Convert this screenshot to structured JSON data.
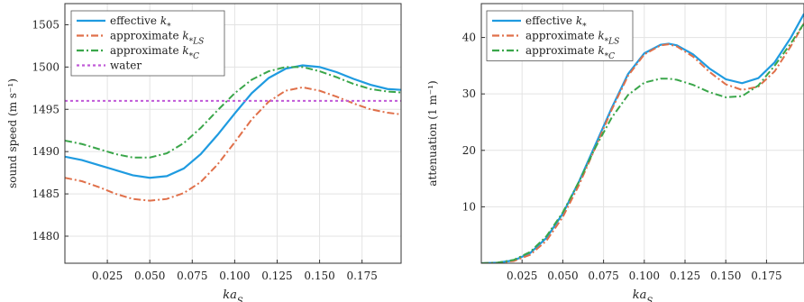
{
  "chart_data": [
    {
      "type": "line",
      "xlabel": "ka_S",
      "ylabel": "sound speed (m s⁻¹)",
      "xlim": [
        0.0,
        0.198
      ],
      "ylim": [
        1476.8,
        1507.5
      ],
      "xticks": [
        0.025,
        0.05,
        0.075,
        0.1,
        0.125,
        0.15,
        0.175
      ],
      "xtick_labels": [
        "0.025",
        "0.050",
        "0.075",
        "0.100",
        "0.125",
        "0.150",
        "0.175"
      ],
      "yticks": [
        1480,
        1485,
        1490,
        1495,
        1500,
        1505
      ],
      "ytick_labels": [
        "1480",
        "1485",
        "1490",
        "1495",
        "1500",
        "1505"
      ],
      "grid": true,
      "legend_position": "top-left",
      "series": [
        {
          "key": "eff",
          "name": "effective k*",
          "color": "#1f9be0",
          "dash": "solid",
          "x": [
            0,
            0.01,
            0.02,
            0.03,
            0.04,
            0.05,
            0.06,
            0.07,
            0.08,
            0.09,
            0.1,
            0.11,
            0.12,
            0.13,
            0.14,
            0.15,
            0.16,
            0.17,
            0.18,
            0.19,
            0.198
          ],
          "y": [
            1489.4,
            1489.0,
            1488.4,
            1487.8,
            1487.2,
            1486.9,
            1487.1,
            1488.0,
            1489.7,
            1492.0,
            1494.5,
            1496.9,
            1498.7,
            1499.8,
            1500.2,
            1500.0,
            1499.4,
            1498.6,
            1497.9,
            1497.4,
            1497.3
          ]
        },
        {
          "key": "ls",
          "name": "approximate k*LS",
          "color": "#e0704a",
          "dash": "dashdot",
          "x": [
            0,
            0.01,
            0.02,
            0.03,
            0.04,
            0.05,
            0.06,
            0.07,
            0.08,
            0.09,
            0.1,
            0.11,
            0.12,
            0.13,
            0.14,
            0.15,
            0.16,
            0.17,
            0.18,
            0.19,
            0.198
          ],
          "y": [
            1486.9,
            1486.5,
            1485.8,
            1485.0,
            1484.4,
            1484.2,
            1484.4,
            1485.1,
            1486.4,
            1488.5,
            1491.1,
            1493.8,
            1495.9,
            1497.2,
            1497.6,
            1497.2,
            1496.5,
            1495.7,
            1495.0,
            1494.6,
            1494.4
          ]
        },
        {
          "key": "c",
          "name": "approximate k*C",
          "color": "#3aa64a",
          "dash": "dashdot",
          "x": [
            0,
            0.01,
            0.02,
            0.03,
            0.04,
            0.05,
            0.06,
            0.07,
            0.08,
            0.09,
            0.1,
            0.11,
            0.12,
            0.13,
            0.14,
            0.15,
            0.16,
            0.17,
            0.18,
            0.19,
            0.198
          ],
          "y": [
            1491.3,
            1490.9,
            1490.3,
            1489.7,
            1489.3,
            1489.3,
            1489.8,
            1491.0,
            1492.8,
            1494.9,
            1496.9,
            1498.5,
            1499.5,
            1500.0,
            1500.0,
            1499.5,
            1498.8,
            1498.0,
            1497.4,
            1497.1,
            1497.0
          ]
        },
        {
          "key": "water",
          "name": "water",
          "color": "#c05ad8",
          "dash": "dotted",
          "x": [
            0,
            0.198
          ],
          "y": [
            1496.0,
            1496.0
          ]
        }
      ]
    },
    {
      "type": "line",
      "xlabel": "ka_S",
      "ylabel": "attenuation (1 m⁻¹)",
      "xlim": [
        0.0,
        0.198
      ],
      "ylim": [
        0,
        46
      ],
      "xticks": [
        0.025,
        0.05,
        0.075,
        0.1,
        0.125,
        0.15,
        0.175
      ],
      "xtick_labels": [
        "0.025",
        "0.050",
        "0.075",
        "0.100",
        "0.125",
        "0.150",
        "0.175"
      ],
      "yticks": [
        10,
        20,
        30,
        40
      ],
      "ytick_labels": [
        "10",
        "20",
        "30",
        "40"
      ],
      "grid": true,
      "legend_position": "top-left",
      "series": [
        {
          "key": "eff",
          "name": "effective k*",
          "color": "#1f9be0",
          "dash": "solid",
          "x": [
            0,
            0.01,
            0.02,
            0.03,
            0.04,
            0.05,
            0.06,
            0.07,
            0.08,
            0.09,
            0.1,
            0.11,
            0.115,
            0.12,
            0.13,
            0.14,
            0.15,
            0.16,
            0.17,
            0.18,
            0.19,
            0.198
          ],
          "y": [
            0,
            0.1,
            0.5,
            1.8,
            4.5,
            8.8,
            14.5,
            21.0,
            27.5,
            33.5,
            37.2,
            38.7,
            38.9,
            38.6,
            37.0,
            34.5,
            32.6,
            31.9,
            32.8,
            35.6,
            40.0,
            44.2
          ]
        },
        {
          "key": "ls",
          "name": "approximate k*LS",
          "color": "#e0704a",
          "dash": "dashdot",
          "x": [
            0,
            0.01,
            0.02,
            0.03,
            0.04,
            0.05,
            0.06,
            0.07,
            0.08,
            0.09,
            0.1,
            0.11,
            0.115,
            0.12,
            0.13,
            0.14,
            0.15,
            0.16,
            0.17,
            0.18,
            0.19,
            0.198
          ],
          "y": [
            0,
            0.1,
            0.4,
            1.5,
            4.0,
            8.2,
            13.9,
            20.5,
            27.2,
            33.2,
            37.0,
            38.6,
            38.8,
            38.4,
            36.6,
            33.9,
            31.7,
            30.7,
            31.3,
            34.0,
            38.5,
            42.5
          ]
        },
        {
          "key": "c",
          "name": "approximate k*C",
          "color": "#3aa64a",
          "dash": "dashdot",
          "x": [
            0,
            0.01,
            0.02,
            0.03,
            0.04,
            0.05,
            0.06,
            0.07,
            0.08,
            0.09,
            0.1,
            0.11,
            0.115,
            0.12,
            0.13,
            0.14,
            0.15,
            0.16,
            0.17,
            0.18,
            0.19,
            0.198
          ],
          "y": [
            0,
            0.1,
            0.6,
            2.0,
            4.8,
            9.0,
            14.5,
            20.5,
            25.8,
            29.8,
            32.0,
            32.7,
            32.7,
            32.5,
            31.6,
            30.3,
            29.4,
            29.6,
            31.5,
            35.0,
            39.0,
            42.5
          ]
        }
      ]
    }
  ]
}
